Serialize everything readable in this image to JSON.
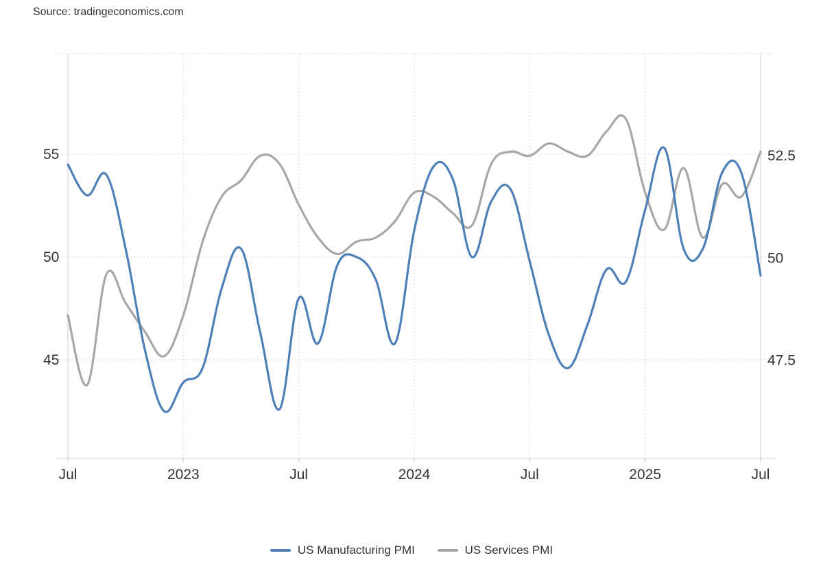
{
  "source_label": "Source: tradingeconomics.com",
  "chart_data": {
    "type": "line",
    "x_ticks": [
      "Jul",
      "2023",
      "Jul",
      "2024",
      "Jul",
      "2025",
      "Jul"
    ],
    "x_tick_dates": [
      "2022-07",
      "2023-01",
      "2023-07",
      "2024-01",
      "2024-07",
      "2025-01",
      "2025-07"
    ],
    "y_left": {
      "ticks": [
        "45",
        "50",
        "55"
      ],
      "tick_values": [
        45,
        50,
        55
      ],
      "range": [
        40.2,
        59.9
      ]
    },
    "y_right": {
      "ticks": [
        "47.5",
        "50",
        "52.5"
      ],
      "tick_values": [
        47.5,
        50,
        52.5
      ],
      "range": [
        45.1,
        55.0
      ]
    },
    "grid": true,
    "legend_position": "bottom-center",
    "series": [
      {
        "name": "US Manufacturing PMI",
        "axis": "left",
        "color": "#4d7fb8",
        "x": [
          "2022-07",
          "2022-08",
          "2022-09",
          "2022-10",
          "2022-11",
          "2022-12",
          "2023-01",
          "2023-02",
          "2023-03",
          "2023-04",
          "2023-05",
          "2023-06",
          "2023-07",
          "2023-08",
          "2023-09",
          "2023-10",
          "2023-11",
          "2023-12",
          "2024-01",
          "2024-02",
          "2024-03",
          "2024-04",
          "2024-05",
          "2024-06",
          "2024-07",
          "2024-08",
          "2024-09",
          "2024-10",
          "2024-11",
          "2024-12",
          "2025-01",
          "2025-02",
          "2025-03",
          "2025-04",
          "2025-05",
          "2025-06",
          "2025-07"
        ],
        "values": [
          54.5,
          53.0,
          54.0,
          50.4,
          45.5,
          42.5,
          43.9,
          44.6,
          48.5,
          50.4,
          46.3,
          42.6,
          48.0,
          45.8,
          49.6,
          50.0,
          48.9,
          45.8,
          51.3,
          54.4,
          53.8,
          50.0,
          52.7,
          53.3,
          49.8,
          46.2,
          44.6,
          46.7,
          49.4,
          48.8,
          52.3,
          55.3,
          50.4,
          50.4,
          54.1,
          54.1,
          49.1
        ]
      },
      {
        "name": "US Services PMI",
        "axis": "right",
        "color": "#a7a7a7",
        "x": [
          "2022-07",
          "2022-08",
          "2022-09",
          "2022-10",
          "2022-11",
          "2022-12",
          "2023-01",
          "2023-02",
          "2023-03",
          "2023-04",
          "2023-05",
          "2023-06",
          "2023-07",
          "2023-08",
          "2023-09",
          "2023-10",
          "2023-11",
          "2023-12",
          "2024-01",
          "2024-02",
          "2024-03",
          "2024-04",
          "2024-05",
          "2024-06",
          "2024-07",
          "2024-08",
          "2024-09",
          "2024-10",
          "2024-11",
          "2024-12",
          "2025-01",
          "2025-02",
          "2025-03",
          "2025-04",
          "2025-05",
          "2025-06",
          "2025-07"
        ],
        "values": [
          48.6,
          46.9,
          49.6,
          48.9,
          48.2,
          47.6,
          48.6,
          50.4,
          51.5,
          51.9,
          52.5,
          52.3,
          51.3,
          50.5,
          50.1,
          50.4,
          50.5,
          50.9,
          51.6,
          51.5,
          51.1,
          50.8,
          52.3,
          52.6,
          52.5,
          52.8,
          52.6,
          52.5,
          53.1,
          53.4,
          51.6,
          50.7,
          52.2,
          50.5,
          51.8,
          51.5,
          52.6
        ]
      }
    ]
  }
}
